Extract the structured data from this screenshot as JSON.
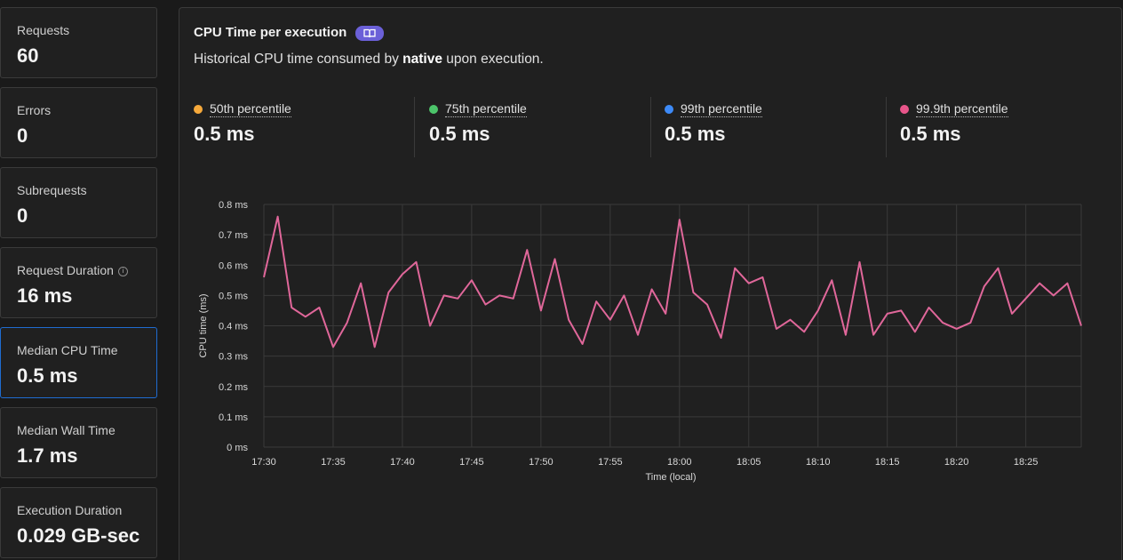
{
  "sidebar": {
    "cards": [
      {
        "label": "Requests",
        "value": "60"
      },
      {
        "label": "Errors",
        "value": "0"
      },
      {
        "label": "Subrequests",
        "value": "0"
      },
      {
        "label": "Request Duration",
        "value": "16 ms",
        "info": true
      },
      {
        "label": "Median CPU Time",
        "value": "0.5 ms",
        "selected": true
      },
      {
        "label": "Median Wall Time",
        "value": "1.7 ms"
      },
      {
        "label": "Execution Duration",
        "value": "0.029 GB-sec"
      }
    ]
  },
  "panel": {
    "title": "CPU Time per execution",
    "badge_icon": "book-icon",
    "desc_prefix": "Historical CPU time consumed by ",
    "desc_bold": "native",
    "desc_suffix": " upon execution."
  },
  "percentiles": [
    {
      "label": "50th percentile",
      "value": "0.5 ms",
      "color": "#f6a93b"
    },
    {
      "label": "75th percentile",
      "value": "0.5 ms",
      "color": "#4cc46a"
    },
    {
      "label": "99th percentile",
      "value": "0.5 ms",
      "color": "#3d8af7"
    },
    {
      "label": "99.9th percentile",
      "value": "0.5 ms",
      "color": "#e8558a"
    }
  ],
  "colors": {
    "accent_selected": "#1f6cd1",
    "series_line": "#e0679a",
    "grid": "#3a3a3a"
  },
  "chart_data": {
    "type": "line",
    "xlabel": "Time (local)",
    "ylabel": "CPU time (ms)",
    "ylim": [
      0,
      0.8
    ],
    "y_ticks": [
      "0 ms",
      "0.1 ms",
      "0.2 ms",
      "0.3 ms",
      "0.4 ms",
      "0.5 ms",
      "0.6 ms",
      "0.7 ms",
      "0.8 ms"
    ],
    "x_ticks": [
      "17:30",
      "17:35",
      "17:40",
      "17:45",
      "17:50",
      "17:55",
      "18:00",
      "18:05",
      "18:10",
      "18:15",
      "18:20",
      "18:25"
    ],
    "grid": true,
    "series": [
      {
        "x": [
          "17:30",
          "17:31",
          "17:32",
          "17:33",
          "17:34",
          "17:35",
          "17:36",
          "17:37",
          "17:38",
          "17:39",
          "17:40",
          "17:41",
          "17:42",
          "17:43",
          "17:44",
          "17:45",
          "17:46",
          "17:47",
          "17:48",
          "17:49",
          "17:50",
          "17:51",
          "17:52",
          "17:53",
          "17:54",
          "17:55",
          "17:56",
          "17:57",
          "17:58",
          "17:59",
          "18:00",
          "18:01",
          "18:02",
          "18:03",
          "18:04",
          "18:05",
          "18:06",
          "18:07",
          "18:08",
          "18:09",
          "18:10",
          "18:11",
          "18:12",
          "18:13",
          "18:14",
          "18:15",
          "18:16",
          "18:17",
          "18:18",
          "18:19",
          "18:20",
          "18:21",
          "18:22",
          "18:23",
          "18:24",
          "18:25",
          "18:26",
          "18:27",
          "18:28",
          "18:29"
        ],
        "values": [
          0.56,
          0.76,
          0.46,
          0.43,
          0.46,
          0.33,
          0.41,
          0.54,
          0.33,
          0.51,
          0.57,
          0.61,
          0.4,
          0.5,
          0.49,
          0.55,
          0.47,
          0.5,
          0.49,
          0.65,
          0.45,
          0.62,
          0.42,
          0.34,
          0.48,
          0.42,
          0.5,
          0.37,
          0.52,
          0.44,
          0.75,
          0.51,
          0.47,
          0.36,
          0.59,
          0.54,
          0.56,
          0.39,
          0.42,
          0.38,
          0.45,
          0.55,
          0.37,
          0.61,
          0.37,
          0.44,
          0.45,
          0.38,
          0.46,
          0.41,
          0.39,
          0.41,
          0.53,
          0.59,
          0.44,
          0.49,
          0.54,
          0.5,
          0.54,
          0.4
        ]
      }
    ]
  }
}
